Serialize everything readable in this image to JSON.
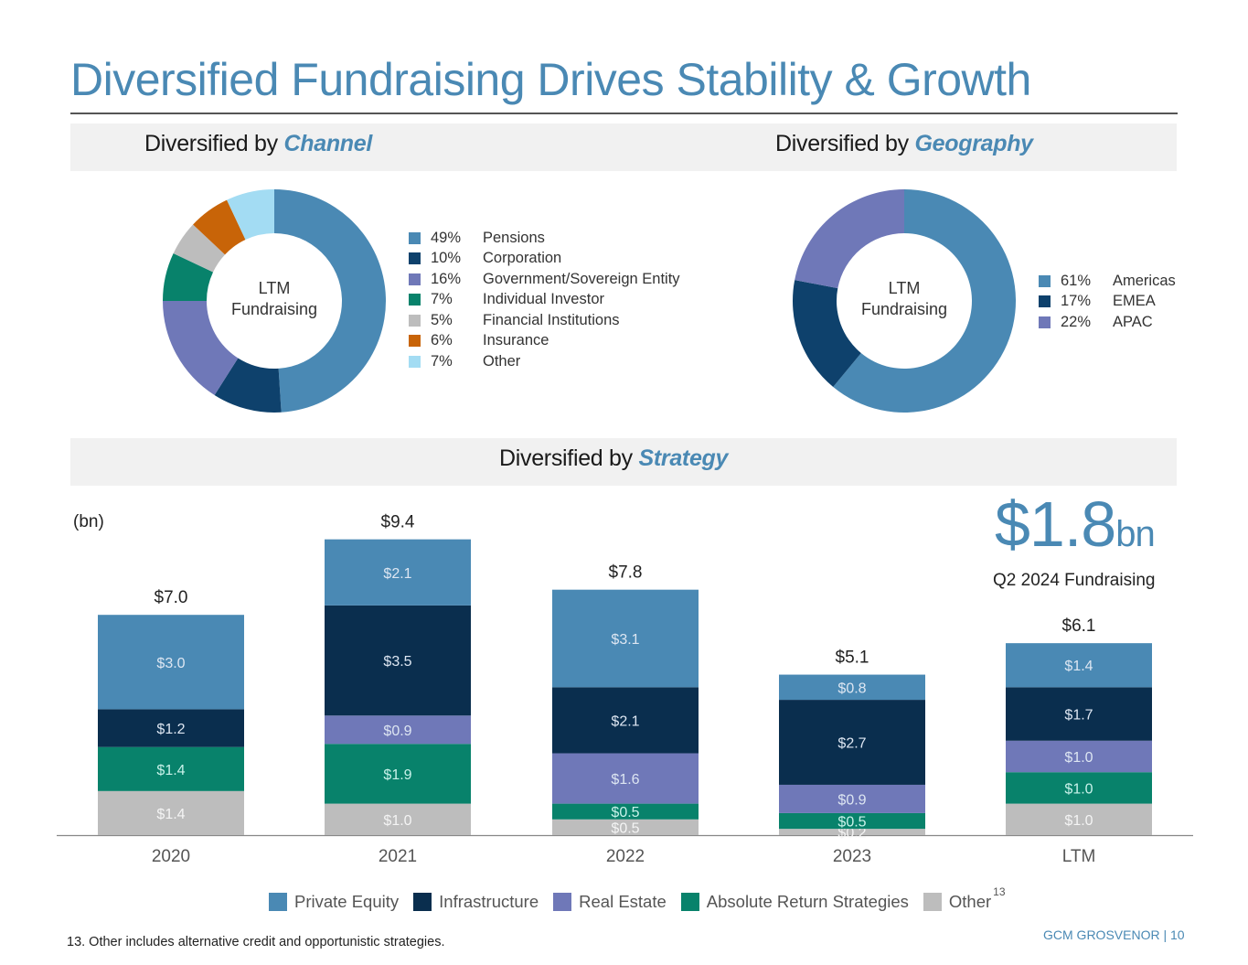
{
  "page": {
    "title": "Diversified Fundraising Drives Stability & Growth",
    "footnote": "13. Other includes alternative credit and opportunistic strategies.",
    "footer": "GCM GROSVENOR | 10"
  },
  "sections": {
    "channel": {
      "prefix": "Diversified by ",
      "emph": "Channel"
    },
    "geography": {
      "prefix": "Diversified by ",
      "emph": "Geography"
    },
    "strategy": {
      "prefix": "Diversified by ",
      "emph": "Strategy"
    }
  },
  "highlight": {
    "value": "$1.8",
    "unit": "bn",
    "label": "Q2 2024 Fundraising"
  },
  "chart_data": [
    {
      "type": "pie",
      "name": "channel-donut",
      "center_label": [
        "LTM",
        "Fundraising"
      ],
      "slices": [
        {
          "label": "Pensions",
          "pct_label": "49%",
          "value": 49,
          "color": "#4a89b4"
        },
        {
          "label": "Corporation",
          "pct_label": "10%",
          "value": 10,
          "color": "#0e416c"
        },
        {
          "label": "Government/Sovereign Entity",
          "pct_label": "16%",
          "value": 16,
          "color": "#6f78b8"
        },
        {
          "label": "Individual Investor",
          "pct_label": "7%",
          "value": 7,
          "color": "#08826b"
        },
        {
          "label": "Financial Institutions",
          "pct_label": "5%",
          "value": 5,
          "color": "#bdbdbd"
        },
        {
          "label": "Insurance",
          "pct_label": "6%",
          "value": 6,
          "color": "#c86408"
        },
        {
          "label": "Other",
          "pct_label": "7%",
          "value": 7,
          "color": "#a3dcf3"
        }
      ],
      "legend": "right"
    },
    {
      "type": "pie",
      "name": "geography-donut",
      "center_label": [
        "LTM",
        "Fundraising"
      ],
      "slices": [
        {
          "label": "Americas",
          "pct_label": "61%",
          "value": 61,
          "color": "#4a89b4"
        },
        {
          "label": "EMEA",
          "pct_label": "17%",
          "value": 17,
          "color": "#0e416c"
        },
        {
          "label": "APAC",
          "pct_label": "22%",
          "value": 22,
          "color": "#6f78b8"
        }
      ],
      "legend": "right"
    },
    {
      "type": "bar",
      "stacked": true,
      "name": "strategy-bars",
      "unit_label": "(bn)",
      "categories": [
        "2020",
        "2021",
        "2022",
        "2023",
        "LTM"
      ],
      "totals": [
        "$7.0",
        "$9.4",
        "$7.8",
        "$5.1",
        "$6.1"
      ],
      "total_values": [
        7.0,
        9.4,
        7.8,
        5.1,
        6.1
      ],
      "series": [
        {
          "name": "Other",
          "sup": "13",
          "color": "#bdbdbd",
          "values": [
            1.4,
            1.0,
            0.5,
            0.2,
            1.0
          ],
          "labels": [
            "$1.4",
            "$1.0",
            "$0.5",
            "$0.2",
            "$1.0"
          ]
        },
        {
          "name": "Absolute Return Strategies",
          "color": "#08826b",
          "values": [
            1.4,
            1.9,
            0.5,
            0.5,
            1.0
          ],
          "labels": [
            "$1.4",
            "$1.9",
            "$0.5",
            "$0.5",
            "$1.0"
          ]
        },
        {
          "name": "Real Estate",
          "color": "#6f78b8",
          "values": [
            0,
            0.9,
            1.6,
            0.9,
            1.0
          ],
          "labels": [
            "",
            "$0.9",
            "$1.6",
            "$0.9",
            "$1.0"
          ]
        },
        {
          "name": "Infrastructure",
          "color": "#0a2e4e",
          "values": [
            1.2,
            3.5,
            2.1,
            2.7,
            1.7
          ],
          "labels": [
            "$1.2",
            "$3.5",
            "$2.1",
            "$2.7",
            "$1.7"
          ]
        },
        {
          "name": "Private Equity",
          "color": "#4a89b4",
          "values": [
            3.0,
            2.1,
            3.1,
            0.8,
            1.4
          ],
          "labels": [
            "$3.0",
            "$2.1",
            "$3.1",
            "$0.8",
            "$1.4"
          ]
        }
      ],
      "legend_order": [
        "Private Equity",
        "Infrastructure",
        "Real Estate",
        "Absolute Return Strategies",
        "Other"
      ],
      "legend": "bottom",
      "ylim": [
        0,
        10
      ],
      "grid": false
    }
  ]
}
